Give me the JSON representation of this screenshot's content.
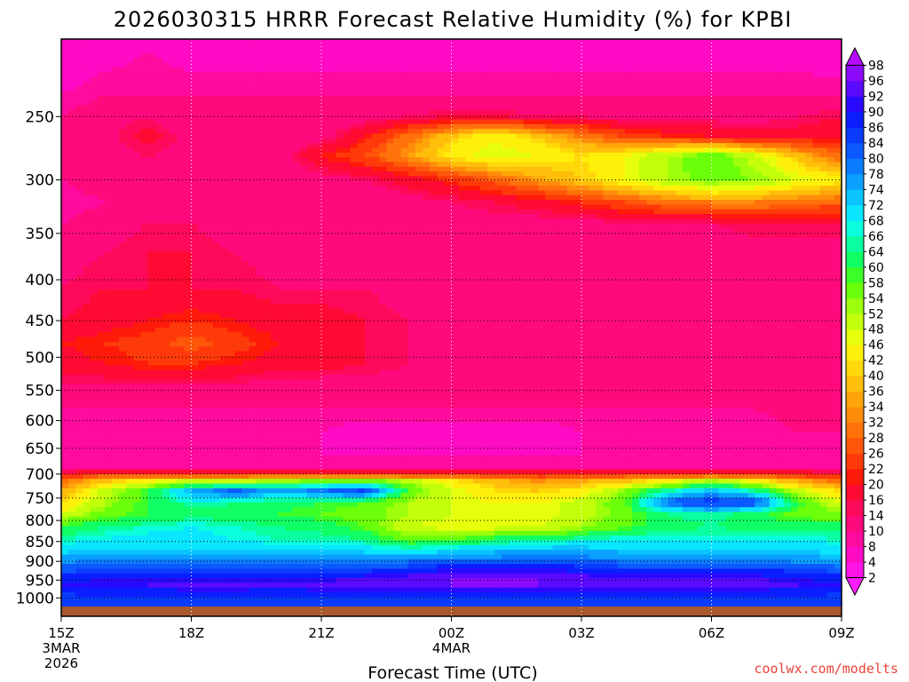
{
  "chart_data": {
    "type": "heatmap",
    "title": "2026030315 HRRR Forecast Relative Humidity (%) for KPBI",
    "xlabel": "Forecast Time (UTC)",
    "ylabel": "",
    "credit": "coolwx.com/modelts",
    "x_ticks": [
      {
        "hour": 0,
        "lines": [
          "15Z",
          "3MAR",
          "2026"
        ]
      },
      {
        "hour": 3,
        "lines": [
          "18Z"
        ]
      },
      {
        "hour": 6,
        "lines": [
          "21Z"
        ]
      },
      {
        "hour": 9,
        "lines": [
          "00Z",
          "4MAR"
        ]
      },
      {
        "hour": 12,
        "lines": [
          "03Z"
        ]
      },
      {
        "hour": 15,
        "lines": [
          "06Z"
        ]
      },
      {
        "hour": 18,
        "lines": [
          "09Z"
        ]
      }
    ],
    "xlim": [
      0,
      18
    ],
    "y_ticks": [
      250,
      300,
      350,
      400,
      450,
      500,
      550,
      600,
      650,
      700,
      750,
      800,
      850,
      900,
      950,
      1000
    ],
    "ylim": [
      200,
      1025
    ],
    "y_scale": "log-pressure",
    "colorbar_levels": [
      2,
      4,
      8,
      10,
      14,
      16,
      20,
      22,
      26,
      28,
      32,
      34,
      36,
      40,
      42,
      46,
      48,
      52,
      54,
      58,
      60,
      64,
      66,
      68,
      72,
      74,
      78,
      80,
      84,
      86,
      90,
      92,
      96,
      98
    ],
    "colorbar_colors": [
      "#ff1dff",
      "#ff14e6",
      "#ff0bc4",
      "#ff0b9e",
      "#ff0a7c",
      "#ff0a5a",
      "#ff0a32",
      "#ff1a0a",
      "#ff3a0a",
      "#ff560a",
      "#ff720a",
      "#ff8c0a",
      "#ffa50a",
      "#ffbe0a",
      "#ffd80a",
      "#fff00a",
      "#e6ff0a",
      "#c4ff0a",
      "#9eff0a",
      "#6cff0a",
      "#3cff28",
      "#10ff64",
      "#0affa0",
      "#0affdc",
      "#0ae6ff",
      "#0ac4ff",
      "#0aa0ff",
      "#0a7cff",
      "#0a5aff",
      "#0a3cff",
      "#0a1eff",
      "#2a0aff",
      "#5a0aff",
      "#8c0aff",
      "#b40aff"
    ],
    "grid": true,
    "surface_color": "#a9572c",
    "field_rows": [
      {
        "p": 205,
        "v": [
          4,
          6,
          8,
          6,
          6,
          6,
          6,
          6,
          6,
          6,
          6,
          6,
          6,
          6,
          6,
          6,
          6,
          6,
          4
        ]
      },
      {
        "p": 235,
        "v": [
          8,
          10,
          10,
          10,
          10,
          10,
          10,
          10,
          10,
          10,
          10,
          10,
          10,
          10,
          10,
          10,
          10,
          10,
          10
        ]
      },
      {
        "p": 250,
        "v": [
          10,
          12,
          14,
          10,
          10,
          10,
          10,
          12,
          14,
          16,
          16,
          14,
          14,
          12,
          12,
          12,
          12,
          14,
          16
        ]
      },
      {
        "p": 265,
        "v": [
          10,
          12,
          18,
          12,
          10,
          10,
          12,
          20,
          30,
          40,
          46,
          40,
          32,
          26,
          22,
          20,
          18,
          18,
          20
        ]
      },
      {
        "p": 280,
        "v": [
          10,
          12,
          14,
          12,
          12,
          12,
          20,
          26,
          34,
          44,
          48,
          46,
          42,
          46,
          52,
          58,
          50,
          38,
          28
        ]
      },
      {
        "p": 300,
        "v": [
          10,
          12,
          12,
          12,
          10,
          10,
          12,
          14,
          18,
          22,
          28,
          34,
          40,
          46,
          52,
          56,
          54,
          48,
          44
        ]
      },
      {
        "p": 320,
        "v": [
          8,
          10,
          12,
          12,
          10,
          10,
          10,
          10,
          12,
          14,
          16,
          18,
          22,
          26,
          30,
          32,
          32,
          30,
          28
        ]
      },
      {
        "p": 340,
        "v": [
          10,
          12,
          14,
          14,
          12,
          12,
          12,
          12,
          12,
          12,
          12,
          12,
          12,
          14,
          14,
          14,
          16,
          16,
          16
        ]
      },
      {
        "p": 370,
        "v": [
          12,
          14,
          16,
          16,
          14,
          12,
          12,
          12,
          12,
          10,
          10,
          10,
          10,
          10,
          10,
          10,
          12,
          12,
          12
        ]
      },
      {
        "p": 410,
        "v": [
          14,
          16,
          16,
          16,
          16,
          14,
          14,
          14,
          12,
          12,
          10,
          10,
          10,
          10,
          10,
          10,
          12,
          12,
          12
        ]
      },
      {
        "p": 450,
        "v": [
          16,
          18,
          20,
          22,
          20,
          18,
          18,
          16,
          14,
          12,
          10,
          10,
          10,
          10,
          10,
          10,
          10,
          10,
          10
        ]
      },
      {
        "p": 480,
        "v": [
          20,
          22,
          24,
          28,
          24,
          20,
          18,
          16,
          14,
          12,
          10,
          10,
          10,
          10,
          10,
          10,
          10,
          10,
          10
        ]
      },
      {
        "p": 510,
        "v": [
          18,
          20,
          22,
          22,
          20,
          18,
          18,
          16,
          14,
          12,
          10,
          10,
          10,
          10,
          10,
          10,
          10,
          10,
          10
        ]
      },
      {
        "p": 540,
        "v": [
          14,
          14,
          14,
          14,
          14,
          12,
          12,
          12,
          12,
          10,
          10,
          10,
          10,
          10,
          10,
          10,
          10,
          12,
          12
        ]
      },
      {
        "p": 580,
        "v": [
          10,
          10,
          10,
          10,
          10,
          10,
          10,
          10,
          10,
          10,
          10,
          10,
          10,
          10,
          10,
          10,
          10,
          12,
          14
        ]
      },
      {
        "p": 620,
        "v": [
          8,
          8,
          8,
          8,
          8,
          8,
          8,
          6,
          6,
          6,
          6,
          6,
          8,
          8,
          8,
          8,
          8,
          10,
          10
        ]
      },
      {
        "p": 660,
        "v": [
          8,
          8,
          8,
          8,
          8,
          8,
          8,
          8,
          8,
          8,
          8,
          8,
          8,
          8,
          8,
          8,
          8,
          8,
          8
        ]
      },
      {
        "p": 690,
        "v": [
          10,
          10,
          10,
          10,
          10,
          10,
          10,
          10,
          10,
          10,
          10,
          10,
          10,
          10,
          10,
          10,
          10,
          10,
          10
        ]
      },
      {
        "p": 700,
        "v": [
          20,
          24,
          24,
          22,
          22,
          22,
          22,
          22,
          22,
          22,
          22,
          22,
          22,
          22,
          22,
          22,
          22,
          22,
          20
        ]
      },
      {
        "p": 715,
        "v": [
          30,
          40,
          46,
          50,
          52,
          54,
          56,
          58,
          52,
          44,
          38,
          34,
          36,
          40,
          46,
          54,
          46,
          36,
          30
        ]
      },
      {
        "p": 735,
        "v": [
          36,
          50,
          60,
          76,
          82,
          76,
          80,
          86,
          58,
          48,
          42,
          40,
          44,
          54,
          66,
          74,
          66,
          50,
          40
        ]
      },
      {
        "p": 760,
        "v": [
          40,
          52,
          60,
          66,
          64,
          62,
          60,
          58,
          52,
          48,
          46,
          46,
          50,
          58,
          82,
          88,
          84,
          60,
          48
        ]
      },
      {
        "p": 785,
        "v": [
          48,
          56,
          60,
          62,
          62,
          60,
          58,
          56,
          52,
          48,
          46,
          46,
          50,
          56,
          64,
          66,
          62,
          56,
          54
        ]
      },
      {
        "p": 815,
        "v": [
          60,
          64,
          66,
          68,
          66,
          64,
          62,
          58,
          48,
          46,
          46,
          48,
          52,
          58,
          62,
          64,
          62,
          62,
          62
        ]
      },
      {
        "p": 845,
        "v": [
          66,
          68,
          70,
          70,
          68,
          66,
          66,
          64,
          56,
          58,
          62,
          64,
          66,
          68,
          68,
          68,
          68,
          68,
          66
        ]
      },
      {
        "p": 870,
        "v": [
          70,
          72,
          72,
          72,
          72,
          70,
          70,
          70,
          68,
          70,
          72,
          74,
          74,
          72,
          72,
          72,
          72,
          72,
          70
        ]
      },
      {
        "p": 895,
        "v": [
          76,
          78,
          78,
          78,
          78,
          78,
          78,
          78,
          78,
          80,
          80,
          80,
          80,
          78,
          78,
          78,
          78,
          76,
          74
        ]
      },
      {
        "p": 920,
        "v": [
          82,
          84,
          84,
          84,
          84,
          84,
          84,
          84,
          86,
          90,
          90,
          90,
          88,
          86,
          86,
          86,
          86,
          84,
          82
        ]
      },
      {
        "p": 945,
        "v": [
          88,
          90,
          90,
          90,
          90,
          90,
          90,
          92,
          94,
          96,
          96,
          96,
          94,
          92,
          92,
          92,
          92,
          90,
          88
        ]
      },
      {
        "p": 965,
        "v": [
          90,
          92,
          92,
          94,
          94,
          92,
          94,
          96,
          96,
          96,
          96,
          96,
          94,
          94,
          94,
          94,
          94,
          92,
          90
        ]
      },
      {
        "p": 985,
        "v": [
          86,
          88,
          88,
          88,
          88,
          88,
          88,
          88,
          88,
          88,
          88,
          88,
          88,
          88,
          88,
          88,
          88,
          88,
          86
        ]
      },
      {
        "p": 1005,
        "v": [
          84,
          84,
          84,
          84,
          84,
          84,
          84,
          84,
          84,
          84,
          84,
          84,
          84,
          84,
          84,
          84,
          84,
          84,
          84
        ]
      }
    ]
  }
}
